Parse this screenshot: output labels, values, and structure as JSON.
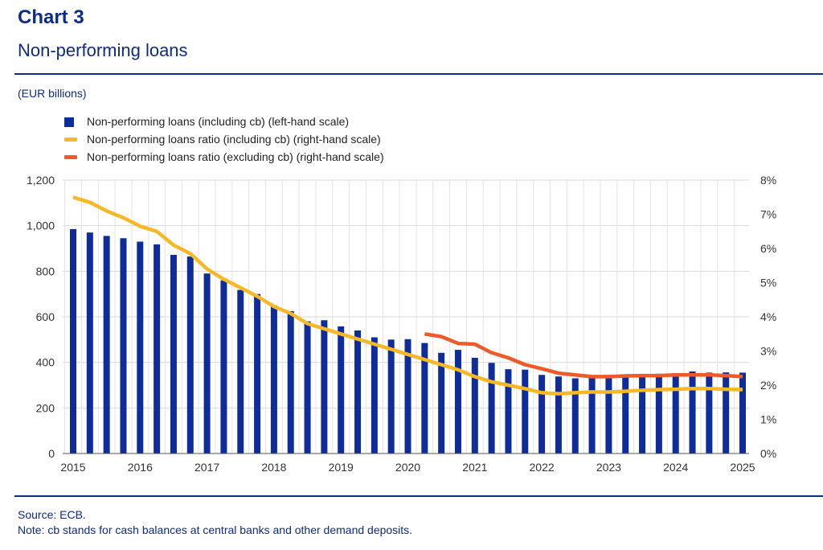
{
  "header": {
    "label": "Chart 3",
    "title": "Non-performing loans"
  },
  "unit_note": "(EUR billions)",
  "legend": [
    {
      "label": "Non-performing loans (including cb) (left-hand scale)",
      "color": "#0f2c9b",
      "kind": "bar"
    },
    {
      "label": "Non-performing loans ratio (including cb) (right-hand scale)",
      "color": "#f6b824",
      "kind": "line"
    },
    {
      "label": "Non-performing loans ratio (excluding cb) (right-hand scale)",
      "color": "#ef5a28",
      "kind": "line"
    }
  ],
  "footer": {
    "source": "Source: ECB.",
    "note": "Note: cb stands for cash balances at central banks and other demand deposits."
  },
  "chart_data": {
    "type": "bar",
    "x_tick_labels": [
      "2015",
      "2016",
      "2017",
      "2018",
      "2019",
      "2020",
      "2021",
      "2022",
      "2023",
      "2024",
      "2025"
    ],
    "quarters_start": "2015 Q1",
    "series": [
      {
        "name": "Non-performing loans (including cb) (left-hand scale)",
        "type": "bar",
        "axis": "left",
        "color": "#0f2c9b",
        "values": [
          985,
          970,
          955,
          945,
          930,
          918,
          872,
          865,
          790,
          760,
          718,
          700,
          650,
          625,
          580,
          585,
          558,
          540,
          510,
          500,
          502,
          485,
          442,
          455,
          420,
          398,
          370,
          368,
          345,
          338,
          330,
          332,
          335,
          338,
          345,
          350,
          352,
          360,
          355,
          356,
          355
        ]
      },
      {
        "name": "Non-performing loans ratio (including cb) (right-hand scale)",
        "type": "line",
        "axis": "right",
        "color": "#f6b824",
        "values": [
          7.5,
          7.35,
          7.1,
          6.9,
          6.65,
          6.5,
          6.1,
          5.85,
          5.4,
          5.1,
          4.85,
          4.6,
          4.3,
          4.1,
          3.8,
          3.65,
          3.5,
          3.35,
          3.2,
          3.05,
          2.9,
          2.75,
          2.6,
          2.45,
          2.25,
          2.1,
          2.0,
          1.9,
          1.78,
          1.75,
          1.78,
          1.8,
          1.8,
          1.82,
          1.85,
          1.87,
          1.88,
          1.9,
          1.9,
          1.88,
          1.87
        ]
      },
      {
        "name": "Non-performing loans ratio (excluding cb) (right-hand scale)",
        "type": "line",
        "axis": "right",
        "color": "#ef5a28",
        "start_index": 21,
        "values": [
          3.5,
          3.42,
          3.22,
          3.2,
          2.95,
          2.8,
          2.6,
          2.48,
          2.35,
          2.3,
          2.25,
          2.25,
          2.27,
          2.28,
          2.28,
          2.3,
          2.3,
          2.3,
          2.28,
          2.25
        ]
      }
    ],
    "y_left": {
      "min": 0,
      "max": 1200,
      "ticks": [
        "0",
        "200",
        "400",
        "600",
        "800",
        "1,000",
        "1,200"
      ]
    },
    "y_right": {
      "min": 0,
      "max": 8,
      "ticks": [
        "0%",
        "1%",
        "2%",
        "3%",
        "4%",
        "5%",
        "6%",
        "7%",
        "8%"
      ]
    },
    "grid": true
  }
}
